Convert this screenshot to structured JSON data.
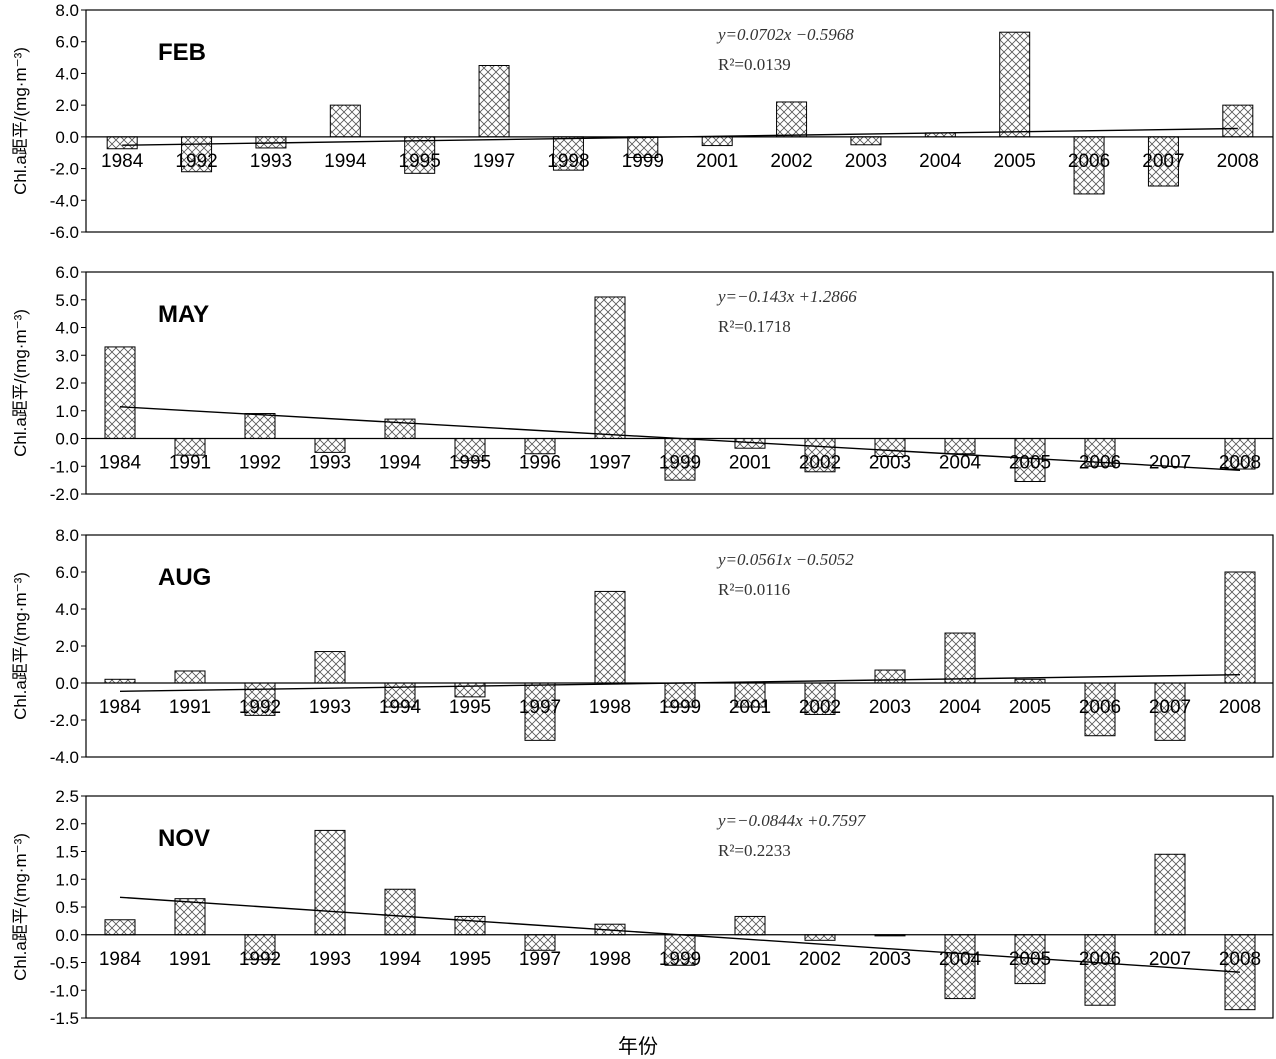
{
  "figure": {
    "xlabel": "年份"
  },
  "chart_data": [
    {
      "type": "bar",
      "title": "FEB",
      "ylabel": "Chl.a距平/(mg·m⁻³)",
      "ylim": [
        -6,
        8
      ],
      "yticks": [
        8,
        6,
        4,
        2,
        0,
        -2,
        -4,
        -6
      ],
      "ytick_labels": [
        "8.0",
        "6.0",
        "4.0",
        "2.0",
        "0.0",
        "-2.0",
        "-4.0",
        "-6.0"
      ],
      "categories": [
        "1984",
        "1992",
        "1993",
        "1994",
        "1995",
        "1997",
        "1998",
        "1999",
        "2001",
        "2002",
        "2003",
        "2004",
        "2005",
        "2006",
        "2007",
        "2008"
      ],
      "values": [
        -0.75,
        -2.2,
        -0.7,
        2.0,
        -2.3,
        4.5,
        -2.1,
        -1.3,
        -0.55,
        2.2,
        -0.5,
        0.25,
        6.6,
        -3.6,
        -3.1,
        2.0
      ],
      "trendline": {
        "equation": "y=0.0702x −0.5968",
        "r2": "R²=0.0139",
        "start": -0.527,
        "end": 0.527
      },
      "pattern": "crosshatch"
    },
    {
      "type": "bar",
      "title": "MAY",
      "ylabel": "Chl.a距平/(mg·m⁻³)",
      "ylim": [
        -2,
        6
      ],
      "yticks": [
        6,
        5,
        4,
        3,
        2,
        1,
        0,
        -1,
        -2
      ],
      "ytick_labels": [
        "6.0",
        "5.0",
        "4.0",
        "3.0",
        "2.0",
        "1.0",
        "0.0",
        "-1.0",
        "-2.0"
      ],
      "categories": [
        "1984",
        "1991",
        "1992",
        "1993",
        "1994",
        "1995",
        "1996",
        "1997",
        "1999",
        "2001",
        "2002",
        "2003",
        "2004",
        "2005",
        "2006",
        "2007",
        "2008"
      ],
      "values": [
        3.3,
        -0.6,
        0.9,
        -0.5,
        0.7,
        -0.8,
        -0.55,
        5.1,
        -1.5,
        -0.35,
        -1.2,
        -0.65,
        -0.55,
        -1.55,
        -1.0,
        0.0,
        -1.1
      ],
      "trendline": {
        "equation": "y=−0.143x +1.2866",
        "r2": "R²=0.1718",
        "start": 1.144,
        "end": -1.145
      },
      "pattern": "crosshatch"
    },
    {
      "type": "bar",
      "title": "AUG",
      "ylabel": "Chl.a距平/(mg·m⁻³)",
      "ylim": [
        -4,
        8
      ],
      "yticks": [
        8,
        6,
        4,
        2,
        0,
        -2,
        -4
      ],
      "ytick_labels": [
        "8.0",
        "6.0",
        "4.0",
        "2.0",
        "0.0",
        "-2.0",
        "-4.0"
      ],
      "categories": [
        "1984",
        "1991",
        "1992",
        "1993",
        "1994",
        "1995",
        "1997",
        "1998",
        "1999",
        "2001",
        "2002",
        "2003",
        "2004",
        "2005",
        "2006",
        "2007",
        "2008"
      ],
      "values": [
        0.2,
        0.65,
        -1.75,
        1.7,
        -1.3,
        -0.75,
        -3.1,
        4.95,
        -1.3,
        -1.3,
        -1.7,
        0.7,
        2.7,
        0.2,
        -2.85,
        -3.1,
        6.0
      ],
      "trendline": {
        "equation": "y=0.0561x −0.5052",
        "r2": "R²=0.0116",
        "start": -0.449,
        "end": 0.449
      },
      "pattern": "crosshatch"
    },
    {
      "type": "bar",
      "title": "NOV",
      "ylabel": "Chl.a距平/(mg·m⁻³)",
      "ylim": [
        -1.5,
        2.5
      ],
      "yticks": [
        2.5,
        2.0,
        1.5,
        1.0,
        0.5,
        0.0,
        -0.5,
        -1.0,
        -1.5
      ],
      "ytick_labels": [
        "2.5",
        "2.0",
        "1.5",
        "1.0",
        "0.5",
        "0.0",
        "-0.5",
        "-1.0",
        "-1.5"
      ],
      "categories": [
        "1984",
        "1991",
        "1992",
        "1993",
        "1994",
        "1995",
        "1997",
        "1998",
        "1999",
        "2001",
        "2002",
        "2003",
        "2004",
        "2005",
        "2006",
        "2007",
        "2008"
      ],
      "values": [
        0.27,
        0.65,
        -0.45,
        1.88,
        0.82,
        0.33,
        -0.28,
        0.19,
        -0.55,
        0.33,
        -0.1,
        -0.02,
        -1.15,
        -0.88,
        -1.27,
        1.45,
        -1.35
      ],
      "trendline": {
        "equation": "y=−0.0844x +0.7597",
        "r2": "R²=0.2233",
        "start": 0.675,
        "end": -0.675
      },
      "pattern": "crosshatch"
    }
  ]
}
